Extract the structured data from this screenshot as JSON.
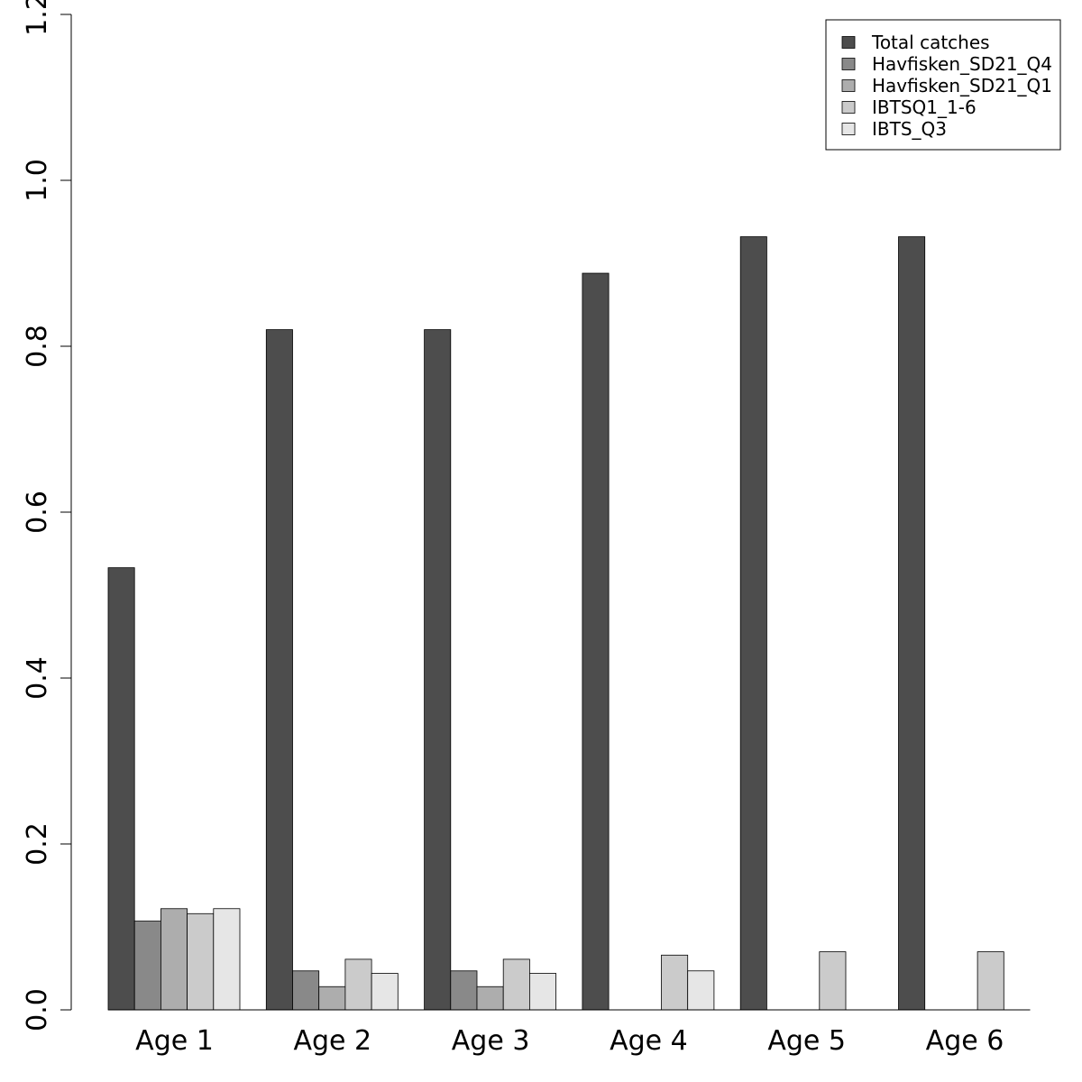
{
  "chart_data": {
    "type": "bar",
    "title": "",
    "xlabel": "",
    "ylabel": "",
    "ylim": [
      0,
      1.2
    ],
    "yticks": [
      "0.0",
      "0.2",
      "0.4",
      "0.6",
      "0.8",
      "1.0",
      "1.2"
    ],
    "categories": [
      "Age 1",
      "Age 2",
      "Age 3",
      "Age 4",
      "Age 5",
      "Age 6"
    ],
    "legend_position": "top-right",
    "grid": false,
    "series": [
      {
        "name": "Total catches",
        "color": "#4d4d4d",
        "values": [
          0.533,
          0.82,
          0.82,
          0.888,
          0.932,
          0.932
        ]
      },
      {
        "name": "Havfisken_SD21_Q4",
        "color": "#898989",
        "values": [
          0.107,
          0.047,
          0.047,
          0,
          0,
          0
        ]
      },
      {
        "name": "Havfisken_SD21_Q1",
        "color": "#adadad",
        "values": [
          0.122,
          0.028,
          0.028,
          0,
          0,
          0
        ]
      },
      {
        "name": "IBTSQ1_1-6",
        "color": "#cbcbcb",
        "values": [
          0.116,
          0.061,
          0.061,
          0.066,
          0.07,
          0.07
        ]
      },
      {
        "name": "IBTS_Q3",
        "color": "#e6e6e6",
        "values": [
          0.122,
          0.044,
          0.044,
          0.047,
          0,
          0
        ]
      }
    ]
  }
}
